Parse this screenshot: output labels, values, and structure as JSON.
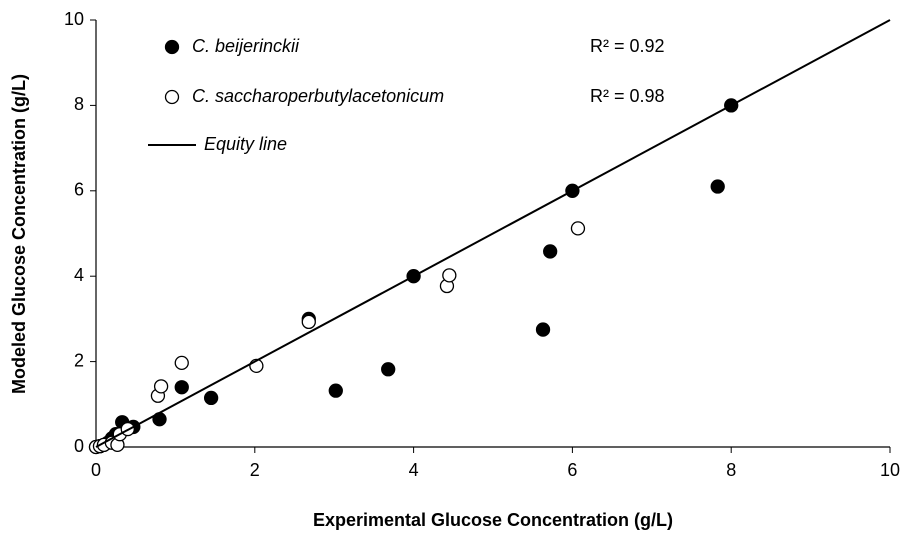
{
  "chart_data": {
    "type": "scatter",
    "xlabel": "Experimental Glucose Concentration (g/L)",
    "ylabel": "Modeled Glucose Concentration (g/L)",
    "xlim": [
      0,
      10
    ],
    "ylim": [
      0,
      10
    ],
    "xticks": [
      0,
      2,
      4,
      6,
      8,
      10
    ],
    "yticks": [
      0,
      2,
      4,
      6,
      8,
      10
    ],
    "grid": false,
    "series": [
      {
        "name": "C. beijerinckii",
        "color": "#000000",
        "marker": "filled",
        "x": [
          0,
          0.05,
          0.1,
          0.15,
          0.2,
          0.25,
          0.33,
          0.47,
          0.8,
          1.08,
          1.45,
          2.68,
          3.02,
          3.68,
          4.0,
          5.63,
          5.72,
          6.0,
          7.83,
          8.0
        ],
        "values": [
          0,
          0.02,
          0.05,
          0.1,
          0.2,
          0.3,
          0.58,
          0.47,
          0.65,
          1.4,
          1.15,
          3.0,
          1.32,
          1.82,
          4.0,
          2.75,
          4.58,
          6.0,
          6.1,
          8.0
        ]
      },
      {
        "name": "C. saccharoperbutylacetonicum",
        "color": "#000000",
        "marker": "open",
        "x": [
          0,
          0.05,
          0.1,
          0.2,
          0.27,
          0.3,
          0.4,
          0.78,
          0.82,
          1.08,
          2.02,
          2.68,
          4.42,
          4.45,
          6.07
        ],
        "values": [
          0,
          0.02,
          0.05,
          0.1,
          0.05,
          0.3,
          0.42,
          1.2,
          1.42,
          1.97,
          1.9,
          2.93,
          3.77,
          4.02,
          5.12
        ]
      },
      {
        "name": "Equity line",
        "color": "#000000",
        "marker": "line",
        "x": [
          0,
          10
        ],
        "values": [
          0,
          10
        ]
      }
    ],
    "annotations": [
      "R² = 0.92",
      "R² = 0.98"
    ]
  }
}
